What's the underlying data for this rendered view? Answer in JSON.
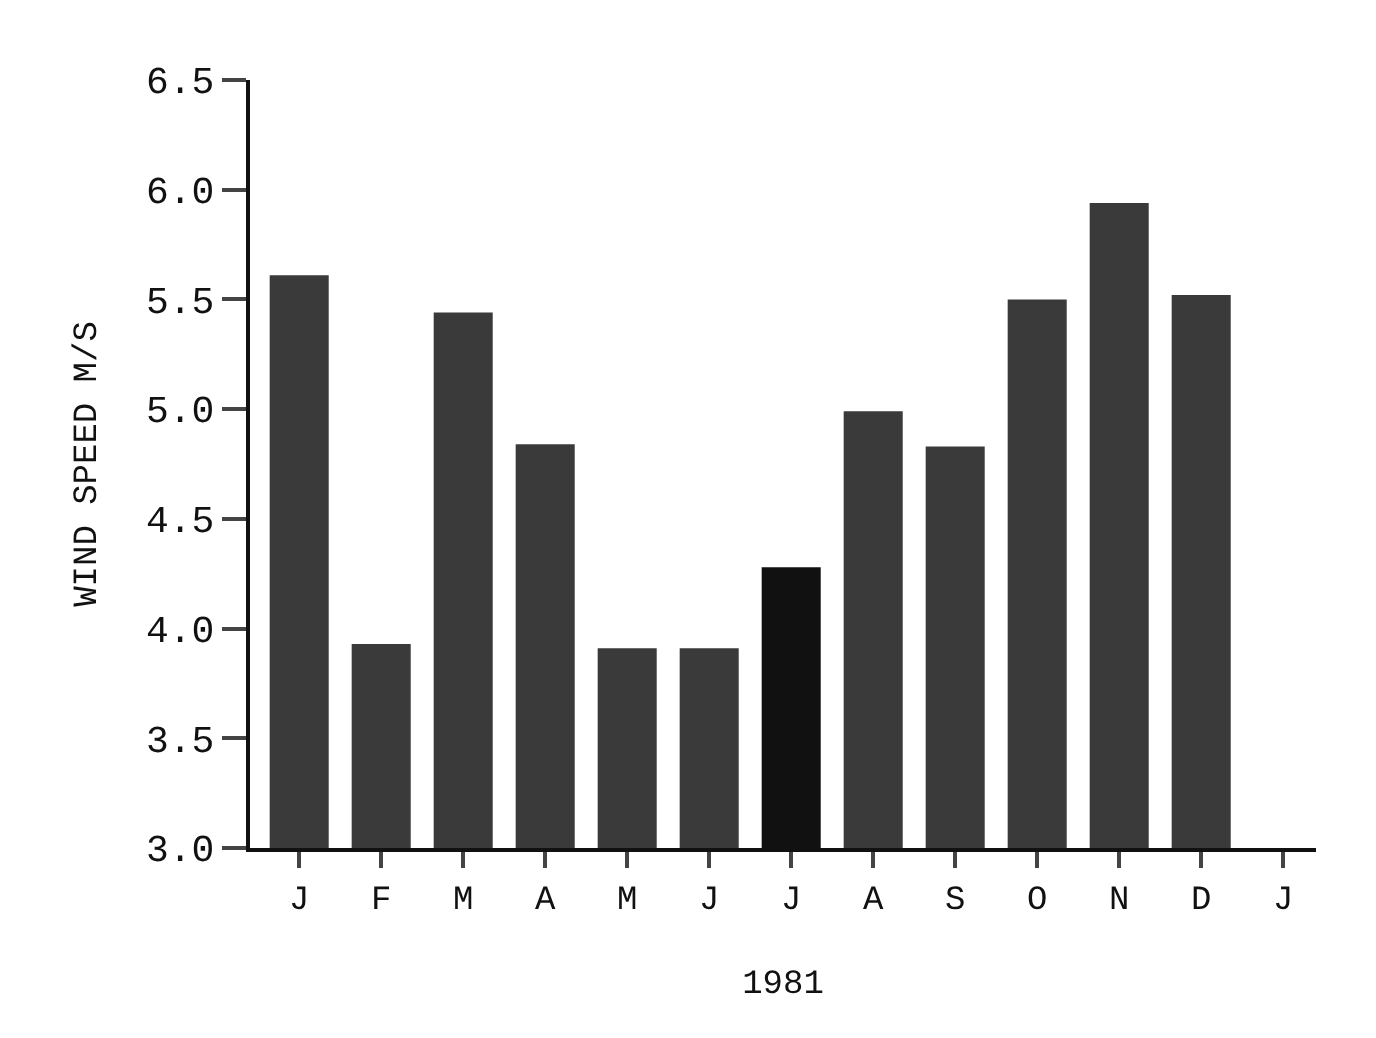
{
  "chart_data": {
    "type": "bar",
    "xlabel": "1981",
    "ylabel": "WIND SPEED M/S",
    "categories": [
      "J",
      "F",
      "M",
      "A",
      "M",
      "J",
      "J",
      "A",
      "S",
      "O",
      "N",
      "D",
      "J"
    ],
    "values": [
      5.61,
      3.93,
      5.44,
      4.84,
      3.91,
      3.91,
      4.28,
      4.99,
      4.83,
      5.5,
      5.94,
      5.52,
      null
    ],
    "colors": [
      "#3a3a3a",
      "#3a3a3a",
      "#3a3a3a",
      "#3a3a3a",
      "#3a3a3a",
      "#3a3a3a",
      "#111111",
      "#3a3a3a",
      "#3a3a3a",
      "#3a3a3a",
      "#3a3a3a",
      "#3a3a3a",
      "#3a3a3a"
    ],
    "ylim": [
      3.0,
      6.5
    ],
    "yticks": [
      {
        "value": 3.0,
        "label": "3.0"
      },
      {
        "value": 3.5,
        "label": "3.5"
      },
      {
        "value": 4.0,
        "label": "4.0"
      },
      {
        "value": 4.5,
        "label": "4.5"
      },
      {
        "value": 5.0,
        "label": "5.0"
      },
      {
        "value": 5.5,
        "label": "5.5"
      },
      {
        "value": 6.0,
        "label": "6.0"
      },
      {
        "value": 6.5,
        "label": "6.5"
      }
    ],
    "grid": false
  }
}
